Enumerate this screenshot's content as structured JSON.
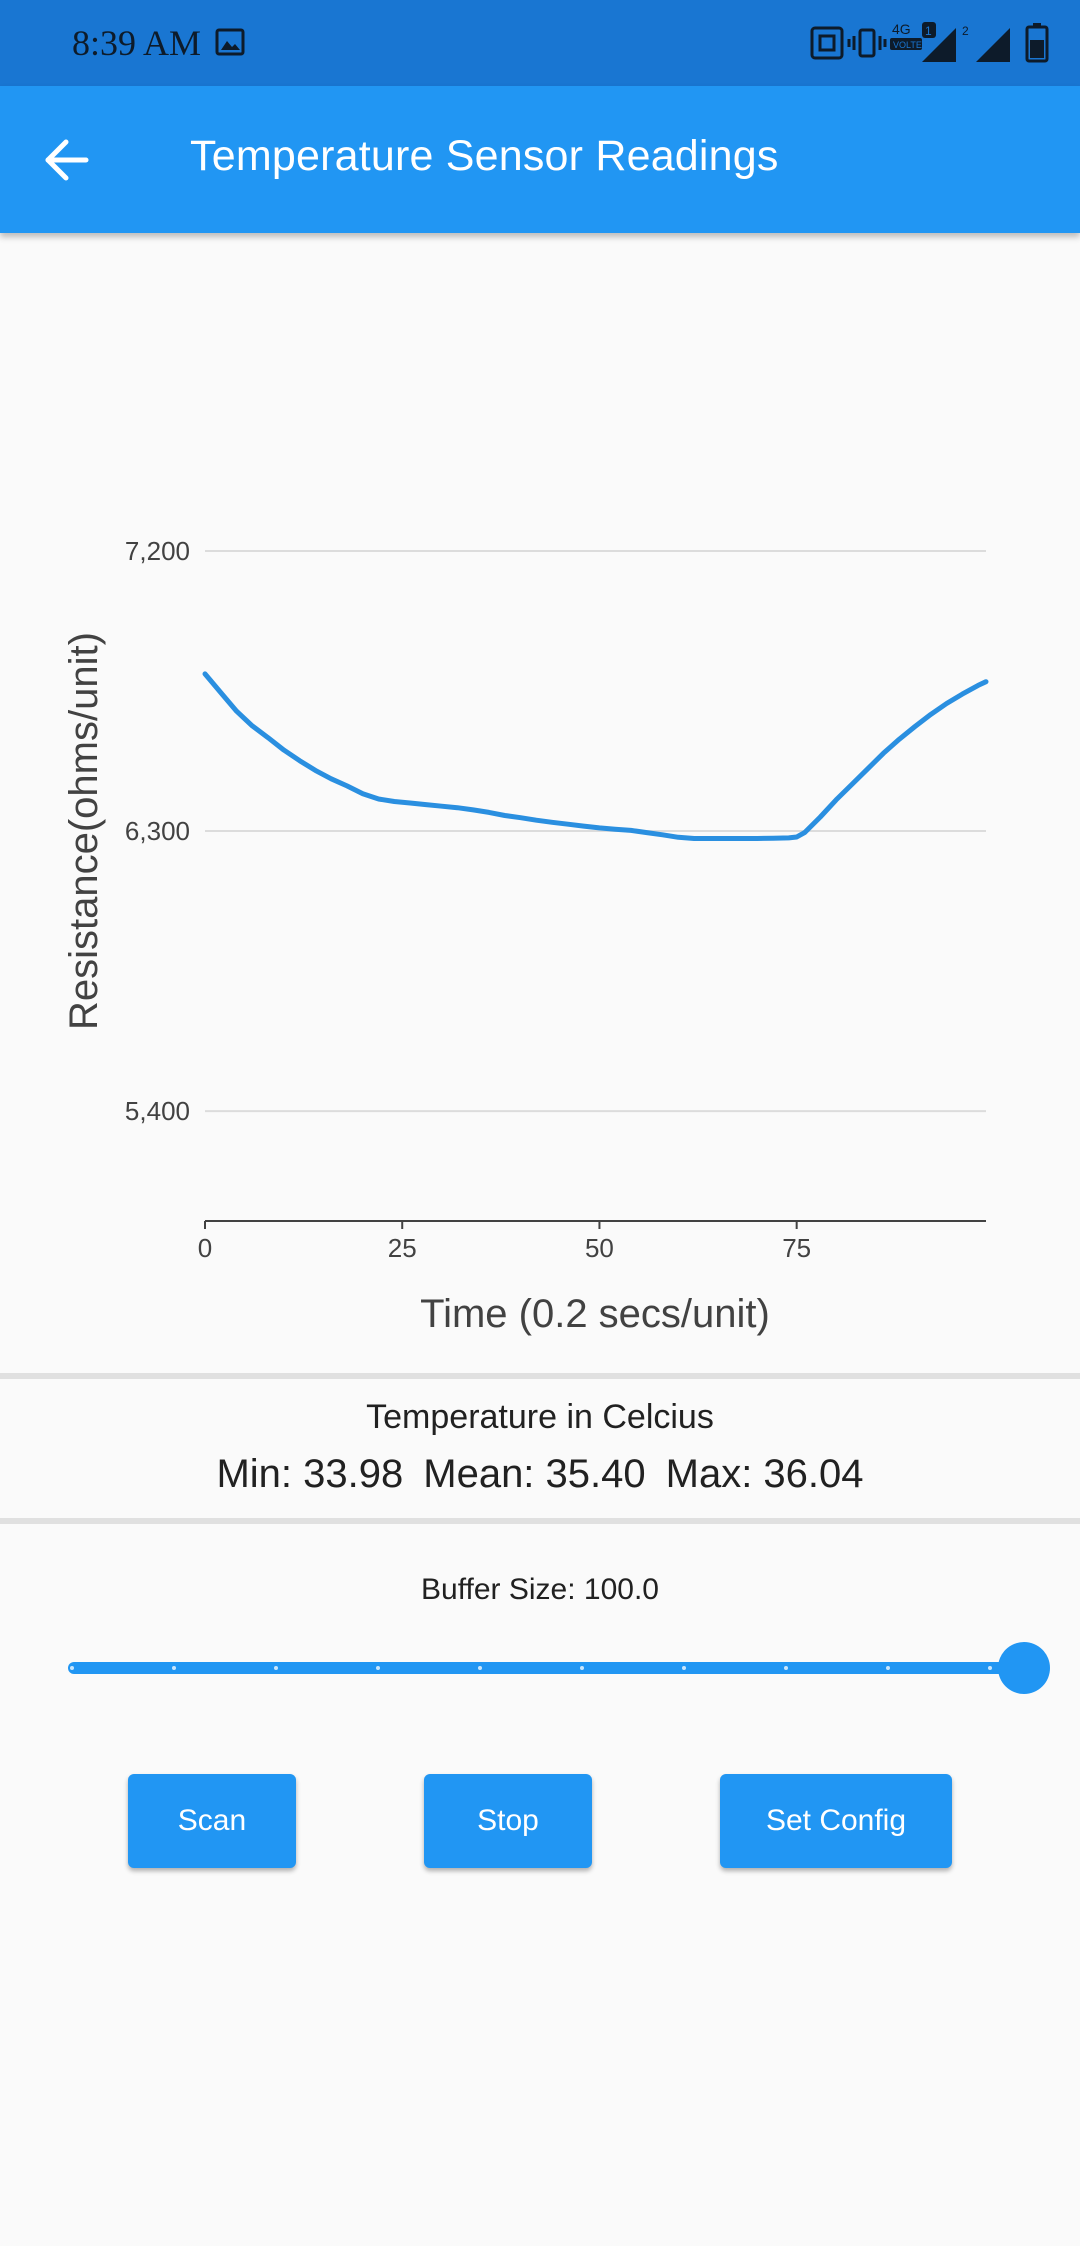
{
  "status_bar": {
    "time": "8:39 AM",
    "network": "4G",
    "volte": "VOLTE",
    "sim1": "1",
    "sim2": "2",
    "icons": [
      "image-icon",
      "nfc-icon",
      "vibrate-icon",
      "signal-icon",
      "battery-icon"
    ]
  },
  "app_bar": {
    "title": "Temperature Sensor Readings",
    "back_icon": "arrow-back-icon"
  },
  "chart_data": {
    "type": "line",
    "xlabel": "Time (0.2 secs/unit)",
    "ylabel": "Resistance(ohms/unit)",
    "x_ticks": [
      "0",
      "25",
      "50",
      "75"
    ],
    "x_tick_values": [
      0,
      25,
      50,
      75
    ],
    "y_ticks": [
      "5,400",
      "6,300",
      "7,200"
    ],
    "y_tick_values": [
      5400,
      6300,
      7200
    ],
    "xlim": [
      0,
      99
    ],
    "ylim": [
      5050,
      7200
    ],
    "grid": true,
    "line_color": "#2a8fe0",
    "series": [
      {
        "x": [
          0,
          2,
          4,
          6,
          8,
          10,
          12,
          14,
          16,
          18,
          20,
          22,
          24,
          26,
          28,
          30,
          32,
          34,
          36,
          38,
          40,
          42,
          44,
          46,
          48,
          50,
          52,
          54,
          56,
          58,
          60,
          62,
          64,
          66,
          68,
          70,
          72,
          74,
          75,
          76,
          78,
          80,
          82,
          84,
          86,
          88,
          90,
          92,
          94,
          96,
          98,
          99
        ],
        "values": [
          6805,
          6745,
          6685,
          6638,
          6600,
          6560,
          6526,
          6495,
          6468,
          6445,
          6420,
          6403,
          6395,
          6390,
          6385,
          6380,
          6375,
          6368,
          6360,
          6350,
          6343,
          6335,
          6328,
          6322,
          6316,
          6310,
          6306,
          6302,
          6295,
          6288,
          6280,
          6276,
          6276,
          6276,
          6276,
          6276,
          6277,
          6278,
          6281,
          6295,
          6345,
          6400,
          6450,
          6500,
          6550,
          6595,
          6636,
          6675,
          6710,
          6740,
          6768,
          6780
        ]
      }
    ]
  },
  "stats": {
    "title": "Temperature in Celcius",
    "min": "Min: 33.98",
    "mean": "Mean: 35.40",
    "max": "Max: 36.04"
  },
  "buffer": {
    "label": "Buffer Size: 100.0",
    "value": 100,
    "min": 0,
    "max": 100,
    "divisions": 9
  },
  "buttons": {
    "scan": "Scan",
    "stop": "Stop",
    "set_config": "Set Config"
  },
  "colors": {
    "primary": "#2196f3",
    "status_bar": "#1976d2",
    "background": "#fafafa"
  }
}
